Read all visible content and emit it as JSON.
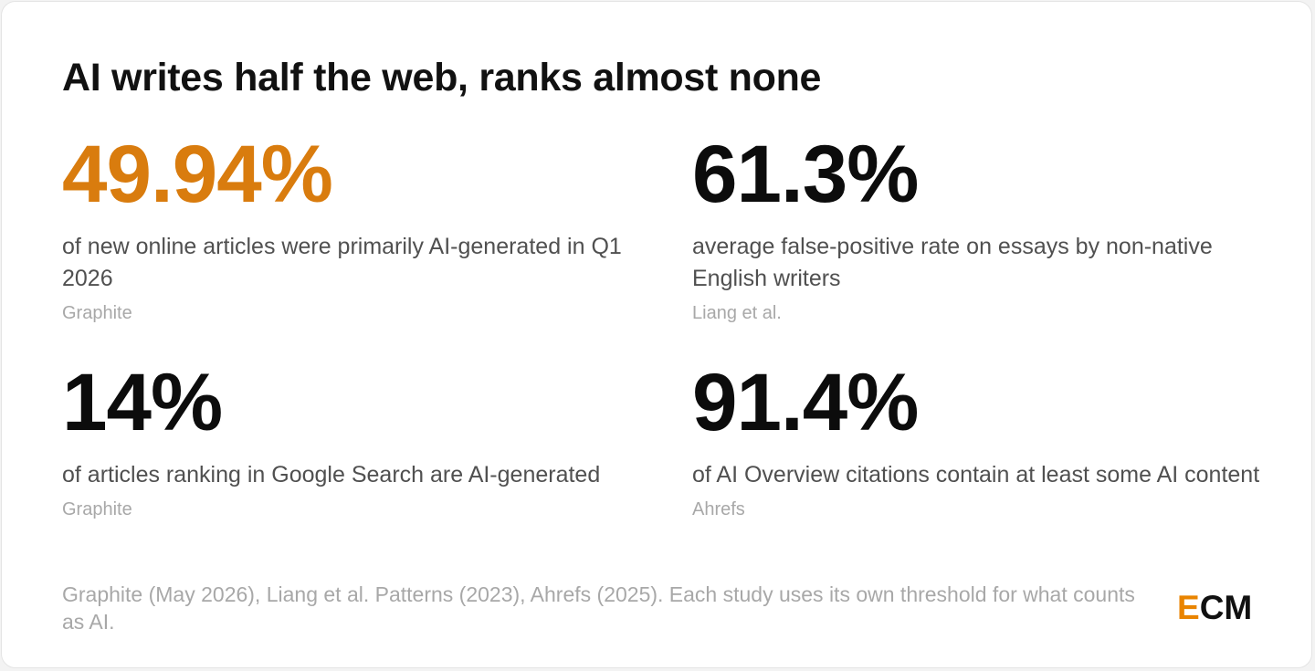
{
  "title": "AI writes half the web, ranks almost none",
  "accent_color": "#d97c0e",
  "stats": [
    {
      "value": "49.94%",
      "description": "of new online articles were primarily AI-generated in Q1 2026",
      "source": "Graphite"
    },
    {
      "value": "61.3%",
      "description": "average false-positive rate on essays by non-native English writers",
      "source": "Liang et al."
    },
    {
      "value": "14%",
      "description": "of articles ranking in Google Search are AI-generated",
      "source": "Graphite"
    },
    {
      "value": "91.4%",
      "description": "of AI Overview citations contain at least some AI content",
      "source": "Ahrefs"
    }
  ],
  "footnote": "Graphite (May 2026), Liang et al. Patterns (2023), Ahrefs (2025). Each study uses its own threshold for what counts as AI.",
  "logo": {
    "first_letter": "E",
    "rest": "CM",
    "first_letter_color": "#e98400"
  }
}
